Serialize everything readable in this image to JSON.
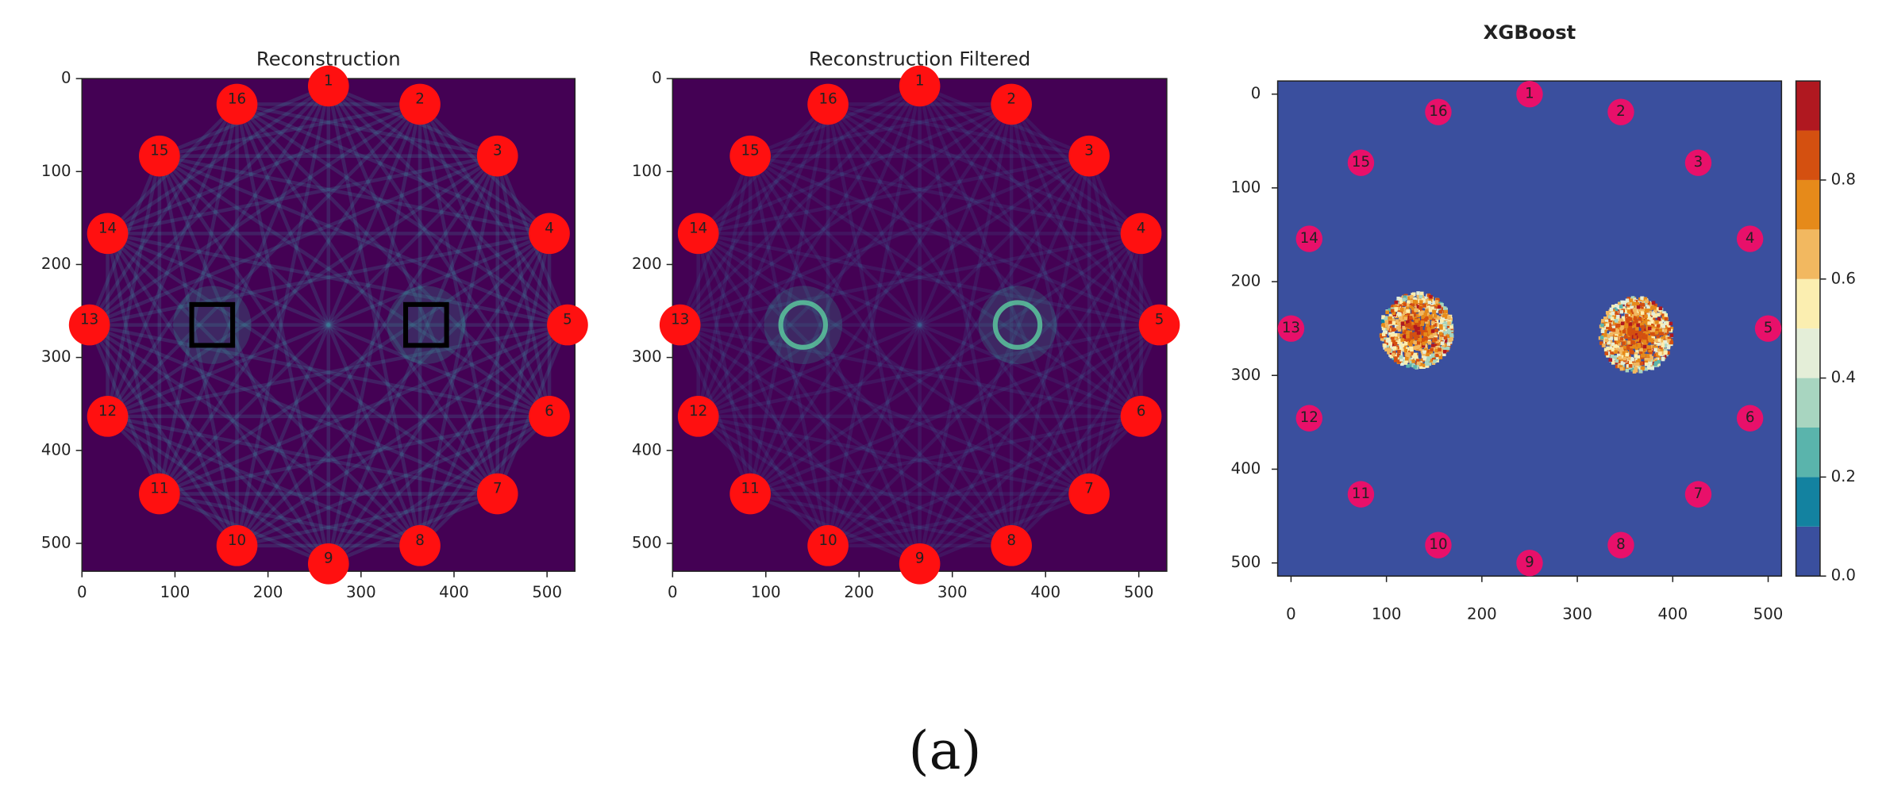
{
  "panels": [
    {
      "title": "Reconstruction",
      "xlim": [
        0,
        530
      ],
      "ylim": [
        0,
        530
      ],
      "xticks": [
        0,
        100,
        200,
        300,
        400,
        500
      ],
      "yticks": [
        0,
        100,
        200,
        300,
        400,
        500
      ],
      "nodes": [
        "1",
        "2",
        "3",
        "4",
        "5",
        "6",
        "7",
        "8",
        "9",
        "10",
        "11",
        "12",
        "13",
        "14",
        "15",
        "16"
      ]
    },
    {
      "title": "Reconstruction Filtered",
      "xlim": [
        0,
        530
      ],
      "ylim": [
        0,
        530
      ],
      "xticks": [
        0,
        100,
        200,
        300,
        400,
        500
      ],
      "yticks": [
        0,
        100,
        200,
        300,
        400,
        500
      ],
      "nodes": [
        "1",
        "2",
        "3",
        "4",
        "5",
        "6",
        "7",
        "8",
        "9",
        "10",
        "11",
        "12",
        "13",
        "14",
        "15",
        "16"
      ]
    },
    {
      "title": "XGBoost",
      "xlim": [
        -14,
        514
      ],
      "ylim": [
        -14,
        514
      ],
      "xticks": [
        0,
        100,
        200,
        300,
        400,
        500
      ],
      "yticks": [
        0,
        100,
        200,
        300,
        400,
        500
      ],
      "nodes": [
        "1",
        "2",
        "3",
        "4",
        "5",
        "6",
        "7",
        "8",
        "9",
        "10",
        "11",
        "12",
        "13",
        "14",
        "15",
        "16"
      ],
      "colorbar": {
        "lim": [
          0,
          1
        ],
        "ticks": [
          {
            "value": 0,
            "label": "0.0"
          },
          {
            "value": 0.2,
            "label": "0.2"
          },
          {
            "value": 0.4,
            "label": "0.4"
          },
          {
            "value": 0.6,
            "label": "0.6"
          },
          {
            "value": 0.8,
            "label": "0.8"
          }
        ]
      }
    }
  ],
  "caption": "(a)"
}
